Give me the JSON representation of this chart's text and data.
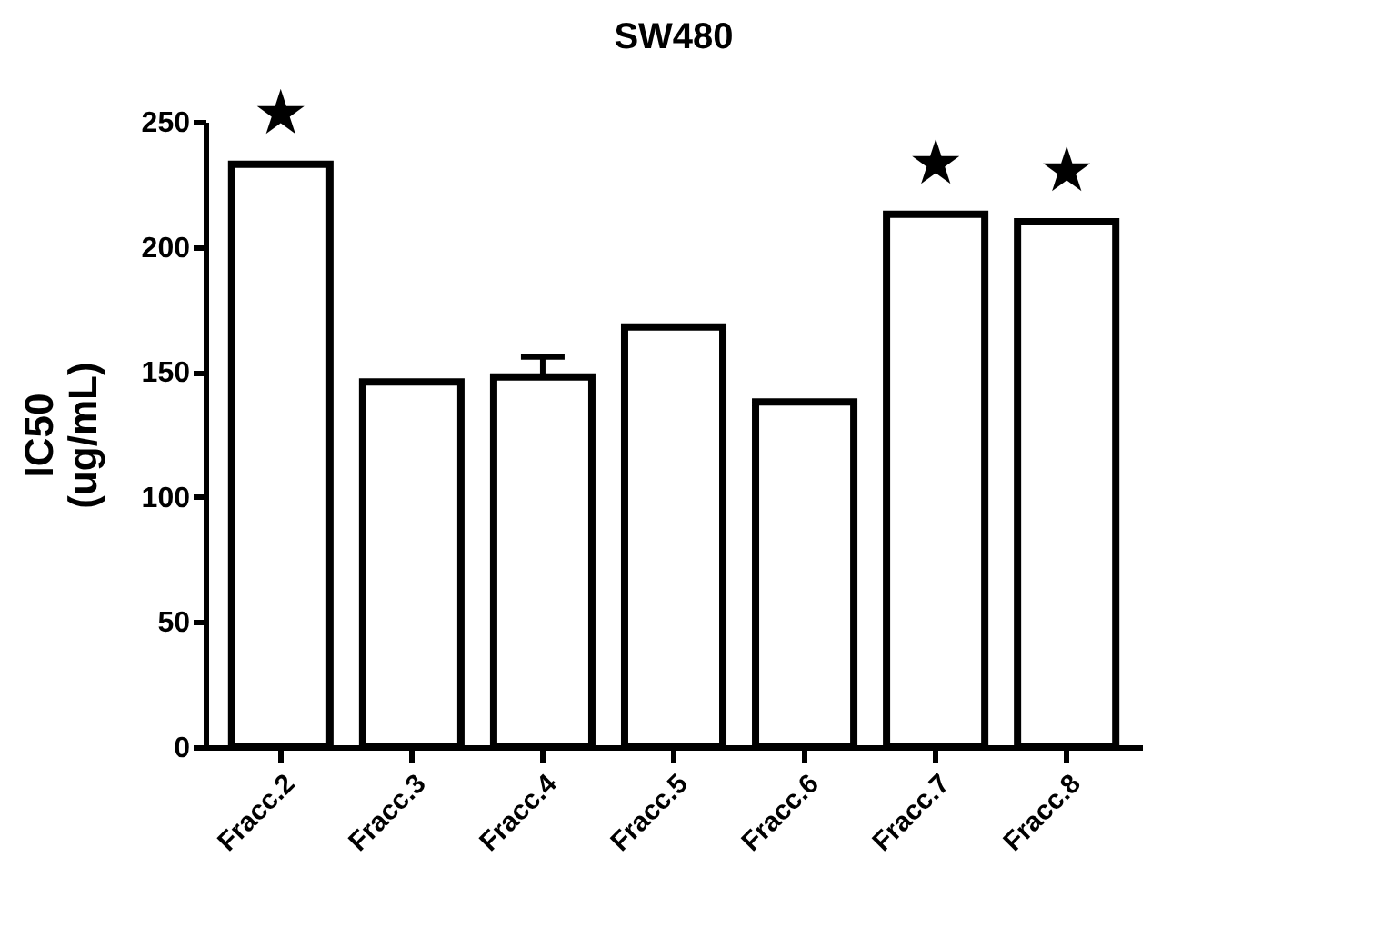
{
  "chart_data": {
    "type": "bar",
    "title": "SW480",
    "ylabel": "IC50\n(ug/mL)",
    "categories": [
      "Fracc.2",
      "Fracc.3",
      "Fracc.4",
      "Fracc.5",
      "Fracc.6",
      "Fracc.7",
      "Fracc.8"
    ],
    "values": [
      233,
      146,
      148,
      168,
      138,
      213,
      210
    ],
    "errors": [
      null,
      null,
      8,
      null,
      null,
      null,
      null
    ],
    "color": "#000000",
    "ylim": [
      0,
      250
    ],
    "yticks": [
      0,
      50,
      100,
      150,
      200,
      250
    ],
    "grid": false,
    "annotations": [
      {
        "text": "★",
        "x": "Fracc.2",
        "y": 233
      },
      {
        "text": "★",
        "x": "Fracc.7",
        "y": 213
      },
      {
        "text": "★",
        "x": "Fracc.8",
        "y": 210
      }
    ]
  }
}
